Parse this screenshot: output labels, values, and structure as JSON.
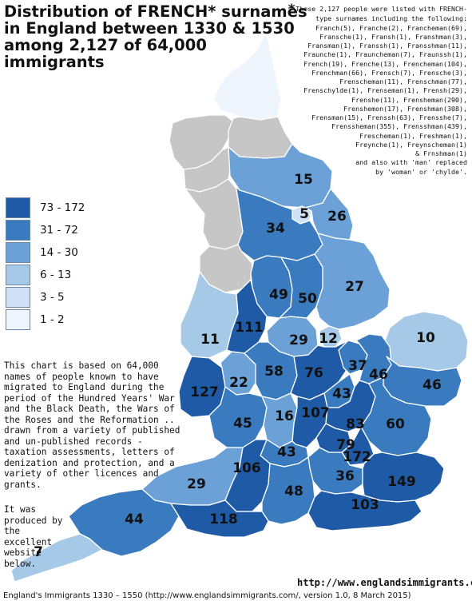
{
  "title_lines": [
    "Distribution of FRENCH* surnames",
    "in England between 1330 & 1530",
    "among 2,127 of 64,000",
    "immigrants"
  ],
  "names_star": "*",
  "names_note": "These 2,127 people were listed with FRENCH-type surnames including the following:\nFranch(5), Franche(2), Francheman(69),\nFransche(1), Fransh(1), Franshman(3),\nFransman(1), Franssh(1), Fransshman(11),\nFraunche(1), Frauncheman(7), Fraunssh(1),\nFrench(19), Frenche(13), Frencheman(104),\nFrenchman(66), Frensch(7), Frensche(3),\nFrenscheman(11), Frenschman(77),\nFrenschylde(1), Frenseman(1), Frensh(29),\nFrenshe(11), Frensheman(290),\nFrenshemon(17), Frenshman(308),\nFrensman(15), Frenssh(63), Frensshe(7),\nFrenssheman(355), Frensshman(439),\nFrescheman(1), Freshman(1),\nFreynche(1), Freynscheman(1)\n& Frnshman(1)\nand also with 'man' replaced\nby 'woman' or 'chylde'.",
  "legend": [
    {
      "label": "73 - 172",
      "color": "#1f5aa6"
    },
    {
      "label": "31 - 72",
      "color": "#3a7bc0"
    },
    {
      "label": "14 - 30",
      "color": "#6ba1d6"
    },
    {
      "label": "6 - 13",
      "color": "#a6c9e8"
    },
    {
      "label": "3 - 5",
      "color": "#cfe2f5"
    },
    {
      "label": "1 - 2",
      "color": "#eff5fc"
    }
  ],
  "nodata_color": "#c6c6c6",
  "description": "This chart is based on 64,000 names of people known to have migrated to England during the period of the Hundred Years' War and the Black Death, the Wars of the Roses and the Reformation .. drawn from a variety of published and un-published records - taxation assessments, letters of denization and protection, and a variety of other licences and grants.",
  "produced": "It was produced by the excellent website below.",
  "website": "http://www.englandsimmigrants.com",
  "footer": "England's Immigrants 1330 – 1550 (http://www.englandsimmigrants.com/, version 1.0,  8 March 2015)",
  "regions": [
    {
      "name": "northumberland",
      "value": null,
      "tier": 5
    },
    {
      "name": "cumberland",
      "value": null,
      "tier": -1
    },
    {
      "name": "durham",
      "value": null,
      "tier": -1
    },
    {
      "name": "westmorland",
      "value": null,
      "tier": -1
    },
    {
      "name": "lancashire",
      "value": null,
      "tier": -1
    },
    {
      "name": "yorkshire-north-riding",
      "value": 15,
      "tier": 2
    },
    {
      "name": "york",
      "value": 5,
      "tier": 4
    },
    {
      "name": "yorkshire-east-riding",
      "value": 26,
      "tier": 2
    },
    {
      "name": "yorkshire-west-riding",
      "value": 34,
      "tier": 1
    },
    {
      "name": "cheshire",
      "value": null,
      "tier": -1
    },
    {
      "name": "derbyshire",
      "value": 49,
      "tier": 1
    },
    {
      "name": "nottinghamshire",
      "value": 50,
      "tier": 1
    },
    {
      "name": "lincolnshire",
      "value": 27,
      "tier": 2
    },
    {
      "name": "shropshire",
      "value": 11,
      "tier": 3
    },
    {
      "name": "staffordshire",
      "value": 111,
      "tier": 0
    },
    {
      "name": "leicestershire",
      "value": 29,
      "tier": 2
    },
    {
      "name": "rutland",
      "value": 12,
      "tier": 3
    },
    {
      "name": "norfolk",
      "value": 10,
      "tier": 3
    },
    {
      "name": "herefordshire",
      "value": 127,
      "tier": 0
    },
    {
      "name": "worcestershire",
      "value": 22,
      "tier": 2
    },
    {
      "name": "warwickshire",
      "value": 58,
      "tier": 1
    },
    {
      "name": "northamptonshire",
      "value": 76,
      "tier": 0
    },
    {
      "name": "huntingdonshire",
      "value": 37,
      "tier": 1
    },
    {
      "name": "cambridgeshire",
      "value": 46,
      "tier": 1
    },
    {
      "name": "suffolk",
      "value": 46,
      "tier": 1
    },
    {
      "name": "gloucestershire",
      "value": 45,
      "tier": 1
    },
    {
      "name": "oxfordshire",
      "value": 16,
      "tier": 2
    },
    {
      "name": "buckinghamshire",
      "value": 107,
      "tier": 0
    },
    {
      "name": "bedfordshire",
      "value": 43,
      "tier": 1
    },
    {
      "name": "hertfordshire",
      "value": 83,
      "tier": 0
    },
    {
      "name": "essex",
      "value": 60,
      "tier": 1
    },
    {
      "name": "berkshire",
      "value": 43,
      "tier": 1
    },
    {
      "name": "middlesex",
      "value": 79,
      "tier": 0
    },
    {
      "name": "london",
      "value": 172,
      "tier": 0
    },
    {
      "name": "somerset",
      "value": 29,
      "tier": 2
    },
    {
      "name": "wiltshire",
      "value": 106,
      "tier": 0
    },
    {
      "name": "surrey",
      "value": 36,
      "tier": 1
    },
    {
      "name": "kent",
      "value": 149,
      "tier": 0
    },
    {
      "name": "hampshire",
      "value": 48,
      "tier": 1
    },
    {
      "name": "sussex",
      "value": 103,
      "tier": 0
    },
    {
      "name": "devon",
      "value": 44,
      "tier": 1
    },
    {
      "name": "dorset",
      "value": 118,
      "tier": 0
    },
    {
      "name": "cornwall",
      "value": 7,
      "tier": 3
    }
  ]
}
